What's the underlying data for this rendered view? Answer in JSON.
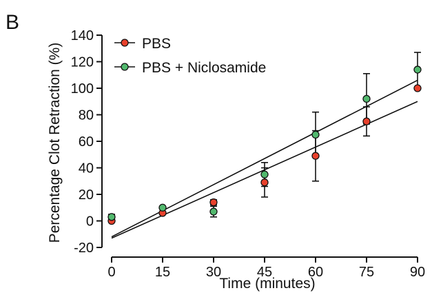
{
  "panel_letter": "B",
  "chart_data": {
    "type": "scatter",
    "title": "",
    "xlabel": "Time (minutes)",
    "ylabel": "Percentage Clot Retraction (%)",
    "xlim": [
      0,
      90
    ],
    "ylim": [
      -20,
      140
    ],
    "x_ticks": [
      "0",
      "15",
      "30",
      "45",
      "60",
      "75",
      "90"
    ],
    "y_ticks": [
      "-20",
      "0",
      "20",
      "40",
      "60",
      "80",
      "100",
      "120",
      "140"
    ],
    "grid": false,
    "legend_position": "top-left",
    "series": [
      {
        "name": "PBS",
        "color": "#e8412c",
        "x": [
          0,
          15,
          30,
          45,
          60,
          75,
          90
        ],
        "y": [
          0,
          6,
          14,
          29,
          49,
          75,
          100
        ],
        "error": [
          0,
          0,
          2,
          11,
          19,
          11,
          0
        ],
        "fit": [
          -13,
          90
        ]
      },
      {
        "name": "PBS + Niclosamide",
        "color": "#52b96e",
        "x": [
          0,
          15,
          30,
          45,
          60,
          75,
          90
        ],
        "y": [
          3,
          10,
          7,
          35,
          65,
          92,
          114
        ],
        "error": [
          2,
          0,
          4,
          9,
          17,
          19,
          13
        ],
        "fit": [
          -12,
          106
        ]
      }
    ]
  }
}
